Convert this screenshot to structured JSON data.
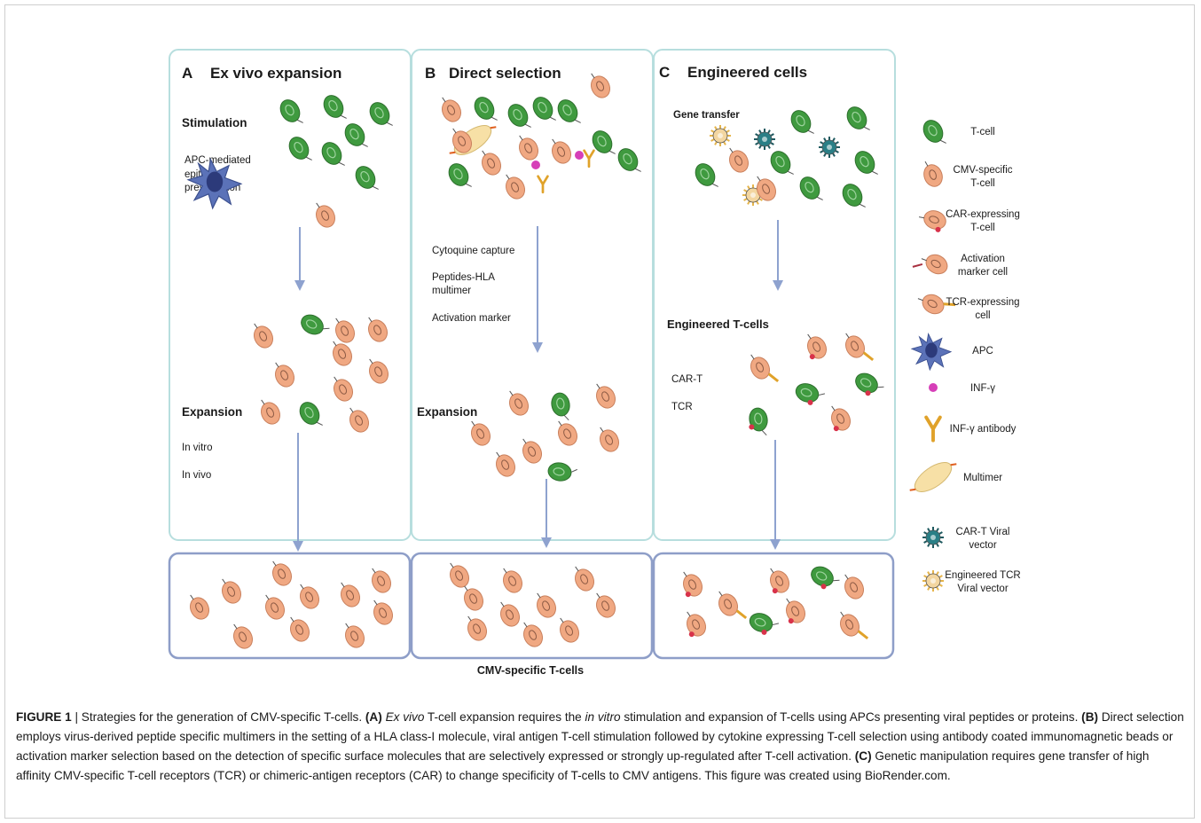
{
  "colors": {
    "panel_border": "#b7dede",
    "result_border": "#8e9ec8",
    "arrow": "#8ea2cf",
    "tcell_green": "#3f9a3f",
    "cmv_orange": "#f0a882",
    "apc_blue": "#5b72b8",
    "infg_pink": "#d63fb8",
    "antibody_gold": "#e0a22a",
    "multimer": "#f7e0a6",
    "car_vector": "#2a7f86",
    "tcr_vector": "#e6b54b"
  },
  "panels": {
    "a": {
      "letter": "A",
      "title": "Ex vivo expansion",
      "stimulation": "Stimulation",
      "apc_line1": "APC-mediated",
      "apc_line2": "epitope",
      "apc_line3": "presentation",
      "expansion": "Expansion",
      "in_vitro": "In vitro",
      "in_vivo": "In vivo"
    },
    "b": {
      "letter": "B",
      "title": "Direct selection",
      "cytoquine": "Cytoquine capture",
      "peptides_line1": "Peptides-HLA",
      "peptides_line2": "multimer",
      "activation": "Activation marker",
      "expansion": "Expansion"
    },
    "c": {
      "letter": "C",
      "title": "Engineered cells",
      "gene_transfer": "Gene transfer",
      "engineered": "Engineered T-cells",
      "car_t": "CAR-T",
      "tcr": "TCR"
    }
  },
  "result_label": "CMV-specific T-cells",
  "legend": [
    {
      "icon": "t-cell",
      "line1": "T-cell",
      "line2": ""
    },
    {
      "icon": "cmv-specific-t-cell",
      "line1": "CMV-specific",
      "line2": "T-cell"
    },
    {
      "icon": "car-expressing-t-cell",
      "line1": "CAR-expressing",
      "line2": "T-cell"
    },
    {
      "icon": "activation-marker-cell",
      "line1": "Activation",
      "line2": "marker cell"
    },
    {
      "icon": "tcr-expressing-cell",
      "line1": "TCR-expressing",
      "line2": "cell"
    },
    {
      "icon": "apc",
      "line1": "APC",
      "line2": ""
    },
    {
      "icon": "inf-gamma",
      "line1": "INF-γ",
      "line2": ""
    },
    {
      "icon": "inf-gamma-antibody",
      "line1": "INF-γ antibody",
      "line2": ""
    },
    {
      "icon": "multimer",
      "line1": "Multimer",
      "line2": ""
    },
    {
      "icon": "car-t-viral-vector",
      "line1": "CAR-T Viral",
      "line2": "vector"
    },
    {
      "icon": "engineered-tcr-viral-vector",
      "line1": "Engineered TCR",
      "line2": "Viral vector"
    }
  ],
  "caption": {
    "fig_label": "FIGURE 1",
    "sep": " | ",
    "intro": "Strategies for the generation of CMV-specific T-cells. ",
    "a_label": "(A)",
    "a_italic1": "Ex vivo",
    "a_text1": " T-cell expansion requires the ",
    "a_italic2": "in vitro",
    "a_text2": " stimulation and expansion of T-cells using APCs presenting viral peptides or proteins. ",
    "b_label": "(B)",
    "b_text": " Direct selection employs virus-derived peptide specific multimers in the setting of a HLA class-I molecule, viral antigen T-cell stimulation followed by cytokine expressing T-cell selection using antibody coated immunomagnetic beads or activation marker selection based on the detection of specific surface molecules that are selectively expressed or strongly up-regulated after T-cell activation. ",
    "c_label": "(C)",
    "c_text": " Genetic manipulation requires gene transfer of high affinity CMV-specific T-cell receptors (TCR) or chimeric-antigen receptors (CAR) to change specificity of T-cells to CMV antigens. This figure was created using BioRender.com."
  }
}
